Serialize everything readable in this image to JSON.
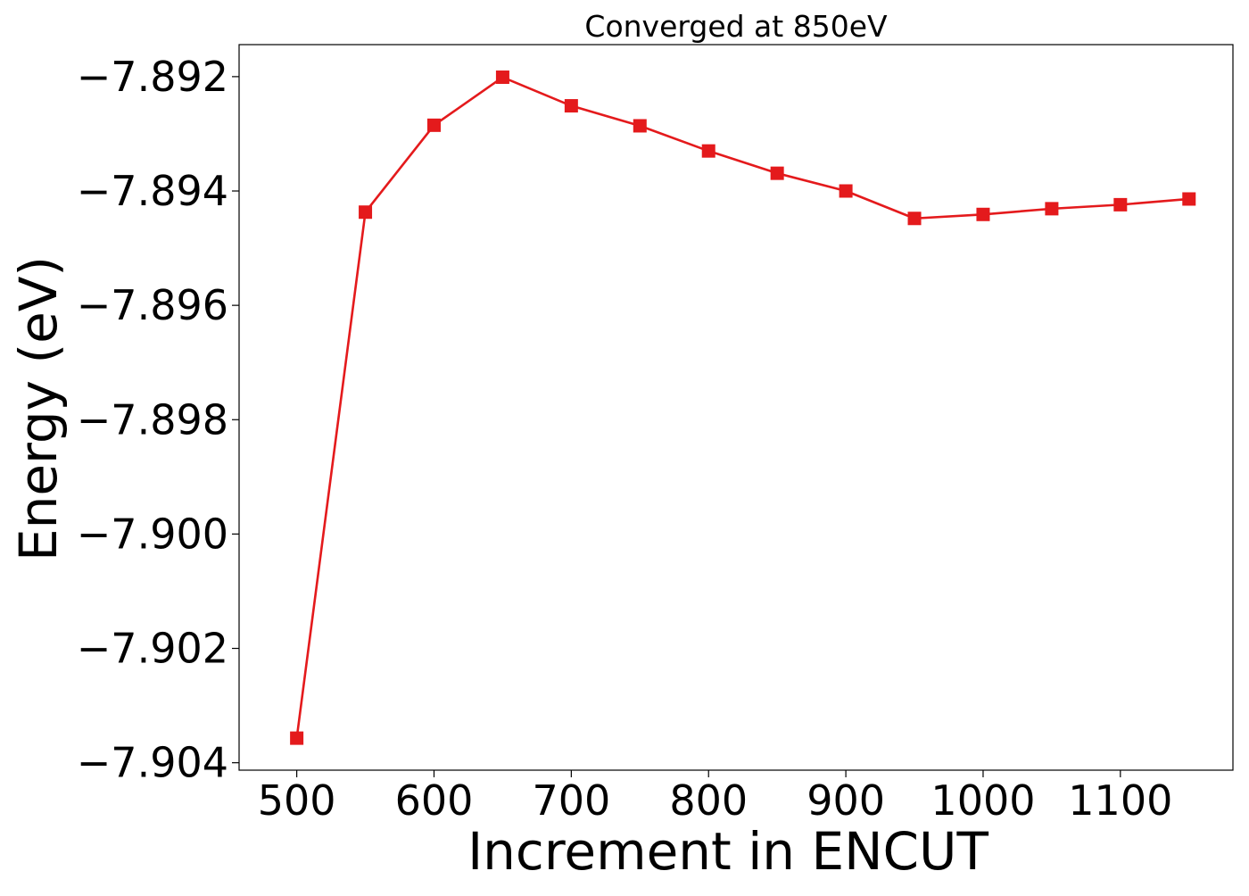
{
  "chart_data": {
    "type": "line",
    "title": "Converged at 850eV",
    "xlabel": "Increment in ENCUT",
    "ylabel": "Energy (eV)",
    "xlim": [
      458,
      1182
    ],
    "ylim": [
      -7.90413,
      -7.89144
    ],
    "x_ticks": [
      500,
      600,
      700,
      800,
      900,
      1000,
      1100
    ],
    "y_ticks": [
      -7.892,
      -7.894,
      -7.896,
      -7.898,
      -7.9,
      -7.902,
      -7.904
    ],
    "x_tick_labels": [
      "500",
      "600",
      "700",
      "800",
      "900",
      "1000",
      "1100"
    ],
    "y_tick_labels": [
      "−7.892",
      "−7.894",
      "−7.896",
      "−7.898",
      "−7.900",
      "−7.902",
      "−7.904"
    ],
    "grid": false,
    "series": [
      {
        "color": "#e41a1c",
        "marker": "square",
        "x": [
          500,
          550,
          600,
          650,
          700,
          750,
          800,
          850,
          900,
          950,
          1000,
          1050,
          1100,
          1150
        ],
        "y": [
          -7.90357,
          -7.89437,
          -7.89285,
          -7.89201,
          -7.89251,
          -7.89286,
          -7.8933,
          -7.89369,
          -7.894,
          -7.89448,
          -7.89441,
          -7.89431,
          -7.89424,
          -7.89414
        ]
      }
    ]
  }
}
